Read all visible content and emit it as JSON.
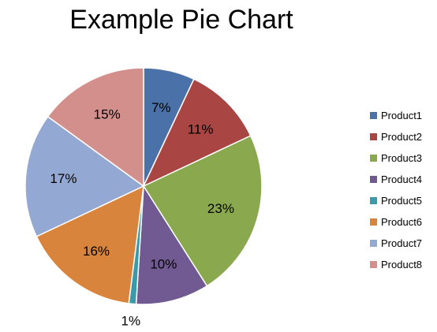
{
  "chart_data": {
    "type": "pie",
    "title": "Example Pie Chart",
    "categories": [
      "Product1",
      "Product2",
      "Product3",
      "Product4",
      "Product5",
      "Product6",
      "Product7",
      "Product8"
    ],
    "values": [
      7,
      11,
      23,
      10,
      1,
      16,
      17,
      15
    ],
    "labels": [
      "7%",
      "11%",
      "23%",
      "10%",
      "1%",
      "16%",
      "17%",
      "15%"
    ],
    "colors": [
      "#4A72A8",
      "#A94543",
      "#8AA84E",
      "#715A92",
      "#3B9AAA",
      "#D9843C",
      "#93A8D2",
      "#D38F8C"
    ],
    "legend_position": "right"
  }
}
